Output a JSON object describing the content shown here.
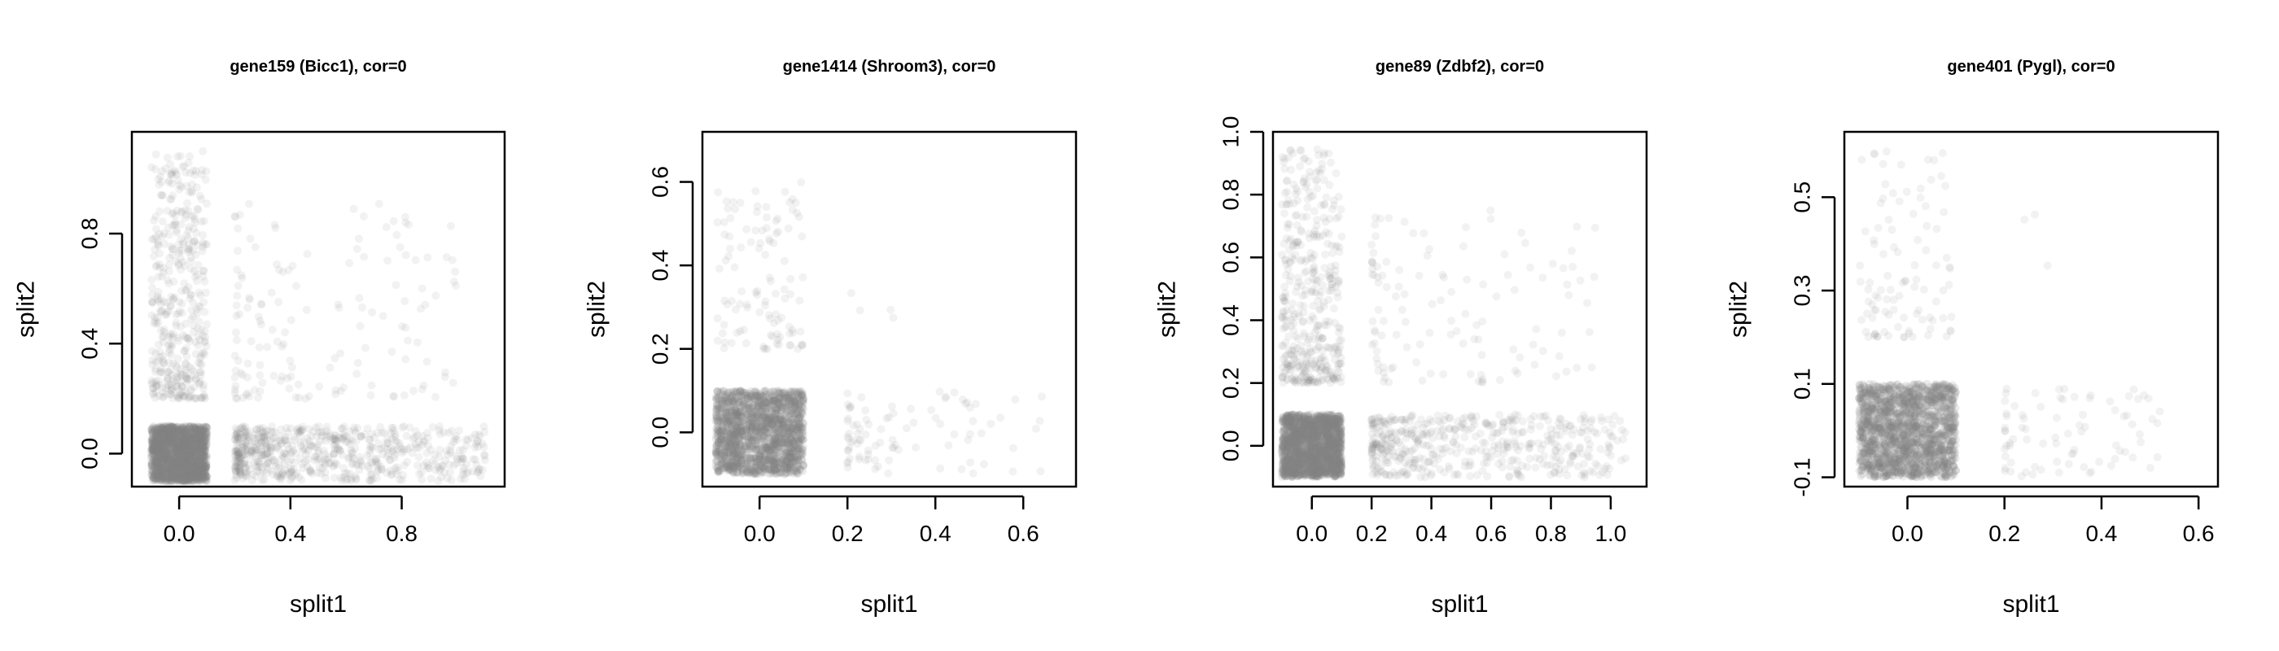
{
  "chart_data": [
    {
      "type": "scatter",
      "title": "gene159 (Bicc1), cor=0",
      "xlabel": "split1",
      "ylabel": "split2",
      "xlim": [
        -0.17,
        1.17
      ],
      "ylim": [
        -0.12,
        1.17
      ],
      "xticks": [
        0.0,
        0.4,
        0.8
      ],
      "xtick_labels": [
        "0.0",
        "0.4",
        "0.8"
      ],
      "yticks": [
        0.0,
        0.4,
        0.8
      ],
      "ytick_labels": [
        "0.0",
        "0.4",
        "0.8"
      ],
      "point_color": "#808080",
      "clusters": [
        {
          "x_range": [
            -0.1,
            0.1
          ],
          "y_range": [
            -0.1,
            0.1
          ],
          "n": 1600,
          "alpha": 0.16
        },
        {
          "x_range": [
            -0.1,
            0.1
          ],
          "y_range": [
            0.2,
            1.1
          ],
          "n": 420,
          "alpha": 0.1,
          "y_skew": 1.6
        },
        {
          "x_range": [
            0.2,
            1.1
          ],
          "y_range": [
            -0.1,
            0.1
          ],
          "n": 650,
          "alpha": 0.1,
          "x_skew": 1.6
        },
        {
          "x_range": [
            0.2,
            1.0
          ],
          "y_range": [
            0.2,
            0.95
          ],
          "n": 150,
          "alpha": 0.1,
          "x_skew": 1.8,
          "y_skew": 1.5
        }
      ]
    },
    {
      "type": "scatter",
      "title": "gene1414 (Shroom3), cor=0",
      "xlabel": "split1",
      "ylabel": "split2",
      "xlim": [
        -0.13,
        0.72
      ],
      "ylim": [
        -0.13,
        0.72
      ],
      "xticks": [
        0.0,
        0.2,
        0.4,
        0.6
      ],
      "xtick_labels": [
        "0.0",
        "0.2",
        "0.4",
        "0.6"
      ],
      "yticks": [
        0.0,
        0.2,
        0.4,
        0.6
      ],
      "ytick_labels": [
        "0.0",
        "0.2",
        "0.4",
        "0.6"
      ],
      "point_color": "#808080",
      "clusters": [
        {
          "x_range": [
            -0.1,
            0.1
          ],
          "y_range": [
            -0.1,
            0.1
          ],
          "n": 1600,
          "alpha": 0.16
        },
        {
          "x_range": [
            -0.1,
            0.1
          ],
          "y_range": [
            0.2,
            0.6
          ],
          "n": 110,
          "alpha": 0.1,
          "y_skew": 1.6
        },
        {
          "x_range": [
            0.2,
            0.65
          ],
          "y_range": [
            -0.1,
            0.1
          ],
          "n": 90,
          "alpha": 0.1,
          "x_skew": 1.8
        },
        {
          "x_range": [
            0.2,
            0.4
          ],
          "y_range": [
            0.25,
            0.45
          ],
          "n": 4,
          "alpha": 0.1
        }
      ]
    },
    {
      "type": "scatter",
      "title": "gene89 (Zdbf2), cor=0",
      "xlabel": "split1",
      "ylabel": "split2",
      "xlim": [
        -0.13,
        1.12
      ],
      "ylim": [
        -0.13,
        1.0
      ],
      "xticks": [
        0.0,
        0.2,
        0.4,
        0.6,
        0.8,
        1.0
      ],
      "xtick_labels": [
        "0.0",
        "0.2",
        "0.4",
        "0.6",
        "0.8",
        "1.0"
      ],
      "yticks": [
        0.0,
        0.2,
        0.4,
        0.6,
        0.8,
        1.0
      ],
      "ytick_labels": [
        "0.0",
        "0.2",
        "0.4",
        "0.6",
        "0.8",
        "1.0"
      ],
      "point_color": "#808080",
      "clusters": [
        {
          "x_range": [
            -0.1,
            0.1
          ],
          "y_range": [
            -0.1,
            0.1
          ],
          "n": 1600,
          "alpha": 0.16
        },
        {
          "x_range": [
            -0.1,
            0.1
          ],
          "y_range": [
            0.2,
            0.95
          ],
          "n": 420,
          "alpha": 0.1,
          "y_skew": 1.6
        },
        {
          "x_range": [
            0.2,
            1.05
          ],
          "y_range": [
            -0.1,
            0.1
          ],
          "n": 480,
          "alpha": 0.1,
          "x_skew": 1.7
        },
        {
          "x_range": [
            0.2,
            0.95
          ],
          "y_range": [
            0.2,
            0.75
          ],
          "n": 120,
          "alpha": 0.1,
          "x_skew": 1.8,
          "y_skew": 1.5
        }
      ]
    },
    {
      "type": "scatter",
      "title": "gene401 (Pygl), cor=0",
      "xlabel": "split1",
      "ylabel": "split2",
      "xlim": [
        -0.13,
        0.64
      ],
      "ylim": [
        -0.12,
        0.64
      ],
      "xticks": [
        0.0,
        0.2,
        0.4,
        0.6
      ],
      "xtick_labels": [
        "0.0",
        "0.2",
        "0.4",
        "0.6"
      ],
      "yticks": [
        -0.1,
        0.1,
        0.3,
        0.5
      ],
      "ytick_labels": [
        "-0.1",
        "0.1",
        "0.3",
        "0.5"
      ],
      "point_color": "#808080",
      "clusters": [
        {
          "x_range": [
            -0.1,
            0.1
          ],
          "y_range": [
            -0.1,
            0.1
          ],
          "n": 1600,
          "alpha": 0.16
        },
        {
          "x_range": [
            -0.1,
            0.1
          ],
          "y_range": [
            0.2,
            0.6
          ],
          "n": 100,
          "alpha": 0.1,
          "y_skew": 1.5
        },
        {
          "x_range": [
            0.2,
            0.55
          ],
          "y_range": [
            -0.1,
            0.1
          ],
          "n": 80,
          "alpha": 0.1,
          "x_skew": 1.6
        },
        {
          "x_range": [
            0.22,
            0.32
          ],
          "y_range": [
            0.3,
            0.52
          ],
          "n": 3,
          "alpha": 0.1
        }
      ]
    }
  ]
}
